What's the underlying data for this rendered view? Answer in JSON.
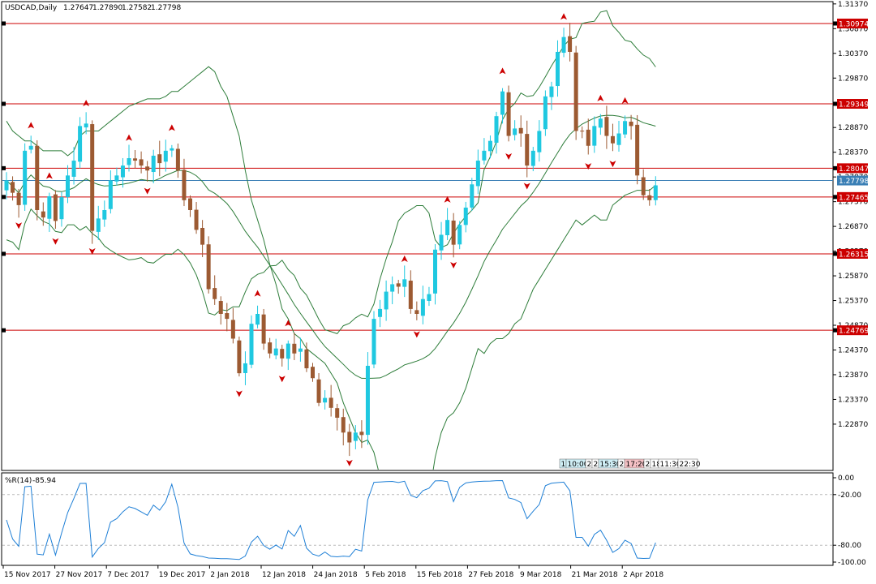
{
  "window": {
    "title": "USDCAD,Daily",
    "ohlc": [
      "1.27647",
      "1.27890",
      "1.27582",
      "1.27798"
    ]
  },
  "colors": {
    "bull": "#1fc8e0",
    "bear": "#9c5a32",
    "band": "#2e7d3a",
    "level": "#cc0000",
    "wpr": "#1e7fd6",
    "current": "#3a7fb5"
  },
  "chart_data": [
    {
      "type": "candlestick",
      "symbol": "USDCAD",
      "timeframe": "Daily",
      "ylim": [
        1.2195,
        1.314
      ],
      "ticks_y": [
        "1.31370",
        "1.30870",
        "1.30370",
        "1.29870",
        "1.29370",
        "1.28870",
        "1.28370",
        "1.27870",
        "1.27370",
        "1.26870",
        "1.26370",
        "1.25870",
        "1.25370",
        "1.24870",
        "1.24370",
        "1.23870",
        "1.23370",
        "1.22870"
      ],
      "x_labels": [
        "15 Nov 2017",
        "27 Nov 2017",
        "7 Dec 2017",
        "19 Dec 2017",
        "2 Jan 2018",
        "12 Jan 2018",
        "24 Jan 2018",
        "5 Feb 2018",
        "15 Feb 2018",
        "27 Feb 2018",
        "9 Mar 2018",
        "21 Mar 2018",
        "2 Apr 2018"
      ],
      "levels": [
        "1.30974",
        "1.29349",
        "1.28047",
        "1.27465",
        "1.26315",
        "1.24769"
      ],
      "current_price": "1.27798",
      "closes": [
        1.278,
        1.2755,
        1.273,
        1.284,
        1.285,
        1.272,
        1.2705,
        1.2748,
        1.2698,
        1.2746,
        1.279,
        1.282,
        1.289,
        1.2895,
        1.2678,
        1.2703,
        1.272,
        1.278,
        1.279,
        1.281,
        1.2825,
        1.282,
        1.281,
        1.28,
        1.283,
        1.2815,
        1.284,
        1.2845,
        1.28,
        1.274,
        1.272,
        1.268,
        1.265,
        1.256,
        1.254,
        1.251,
        1.25,
        1.246,
        1.239,
        1.241,
        1.249,
        1.251,
        1.245,
        1.243,
        1.244,
        1.242,
        1.245,
        1.243,
        1.244,
        1.24,
        1.238,
        1.233,
        1.234,
        1.232,
        1.23,
        1.227,
        1.225,
        1.227,
        1.2265,
        1.2405,
        1.25,
        1.252,
        1.2555,
        1.257,
        1.2565,
        1.258,
        1.252,
        1.251,
        1.254,
        1.255,
        1.264,
        1.267,
        1.27,
        1.265,
        1.269,
        1.2725,
        1.2772,
        1.282,
        1.284,
        1.286,
        1.291,
        1.296,
        1.287,
        1.2885,
        1.2875,
        1.281,
        1.284,
        1.288,
        1.295,
        1.297,
        1.304,
        1.307,
        1.304,
        1.288,
        1.288,
        1.285,
        1.289,
        1.2905,
        1.287,
        1.2855,
        1.2875,
        1.29,
        1.289,
        1.279,
        1.275,
        1.274,
        1.277
      ],
      "bollinger": {
        "upper": [
          1.29,
          1.288,
          1.287,
          1.286,
          1.286,
          1.285,
          1.284,
          1.284,
          1.284,
          1.284,
          1.283,
          1.284,
          1.287,
          1.288,
          1.288,
          1.288,
          1.289,
          1.29,
          1.291,
          1.292,
          1.293,
          1.2935,
          1.294,
          1.2945,
          1.2945,
          1.2945,
          1.295,
          1.296,
          1.296,
          1.297,
          1.298,
          1.299,
          1.3,
          1.301,
          1.3,
          1.297,
          1.295,
          1.291,
          1.287,
          1.28,
          1.274,
          1.27,
          1.266,
          1.261,
          1.257,
          1.252,
          1.25,
          1.247,
          1.246,
          1.244,
          1.243,
          1.242,
          1.241,
          1.239,
          1.237,
          1.233,
          1.23,
          1.227,
          1.225,
          1.2255,
          1.223,
          1.218,
          1.215,
          1.213,
          1.21,
          1.21,
          1.21,
          1.21,
          1.211,
          1.214,
          1.222,
          1.227,
          1.23,
          1.231,
          1.233,
          1.236,
          1.24,
          1.244,
          1.243,
          1.245,
          1.246,
          1.246,
          1.247,
          1.249,
          1.25,
          1.253,
          1.256,
          1.258,
          1.26,
          1.262,
          1.264,
          1.266,
          1.268,
          1.27,
          1.269,
          1.27,
          1.271,
          1.27,
          1.27,
          1.273,
          1.274,
          1.275,
          1.2755,
          1.276,
          1.276,
          1.276,
          1.277
        ]
      },
      "indicator": {
        "name": "%R(14)",
        "value": "-85.94",
        "ylim": [
          -100,
          0
        ],
        "levels": [
          -20,
          -80
        ],
        "ticks": [
          "0.00",
          "-20.00",
          "-80.00",
          "-100.00"
        ]
      }
    }
  ],
  "timebar": {
    "items": [
      "1",
      "10:00",
      "2",
      "2",
      "15:30",
      "2",
      "17:20",
      "2",
      "18",
      "11:30",
      "22:30"
    ]
  }
}
